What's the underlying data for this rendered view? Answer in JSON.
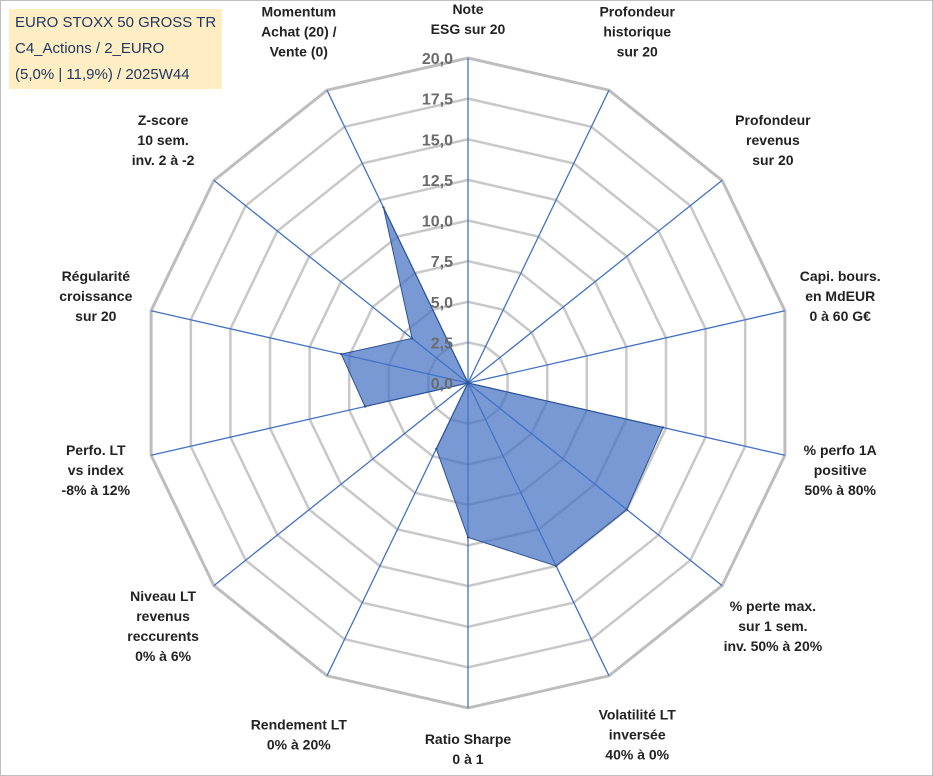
{
  "title_box": {
    "lines": [
      "EURO STOXX 50 GROSS TR",
      "C4_Actions / 2_EURO",
      "(5,0% | 11,9%) / 2025W44"
    ],
    "background": "#ffedc4",
    "text_color": "#1f3864"
  },
  "chart_data": {
    "type": "radar",
    "axes": [
      {
        "label": [
          "Note",
          "ESG sur 20"
        ]
      },
      {
        "label": [
          "Profondeur",
          "historique",
          "sur 20"
        ]
      },
      {
        "label": [
          "Profondeur",
          "revenus",
          "sur 20"
        ]
      },
      {
        "label": [
          "Capi. bours.",
          "en MdEUR",
          "0 à 60 G€"
        ]
      },
      {
        "label": [
          "% perfo 1A",
          "positive",
          "50% à 80%"
        ]
      },
      {
        "label": [
          "% perte max.",
          "sur 1 sem.",
          "inv. 50% à 20%"
        ]
      },
      {
        "label": [
          "Volatilité LT",
          "inversée",
          "40% à 0%"
        ]
      },
      {
        "label": [
          "Ratio Sharpe",
          "0 à 1"
        ]
      },
      {
        "label": [
          "Rendement LT",
          "0% à 20%"
        ]
      },
      {
        "label": [
          "Niveau LT",
          "revenus",
          "reccurents",
          "0% à 6%"
        ]
      },
      {
        "label": [
          "Perfo. LT",
          "vs index",
          "-8% à 12%"
        ]
      },
      {
        "label": [
          "Régularité",
          "croissance",
          "sur 20"
        ]
      },
      {
        "label": [
          "Z-score",
          "10 sem.",
          "inv. 2 à -2"
        ]
      },
      {
        "label": [
          "Momentum",
          "Achat (20) /",
          "Vente (0)"
        ]
      }
    ],
    "series": [
      {
        "values": [
          0,
          0,
          0,
          0,
          12.3,
          12.5,
          12.5,
          9.5,
          4.5,
          0,
          6.5,
          8.0,
          4.4,
          12.0
        ]
      }
    ],
    "rmin": 0,
    "rmax": 20,
    "ticks": [
      "0,0",
      "2,5",
      "5,0",
      "7,5",
      "10,0",
      "12,5",
      "15,0",
      "17,5",
      "20,0"
    ],
    "colors": {
      "fill": "#4472c4",
      "fill_opacity": 0.72,
      "outline": "#2f528f",
      "spoke": "#4472c4",
      "grid": "#c8c8c8",
      "outer_grid": "#bdbdbd"
    }
  }
}
